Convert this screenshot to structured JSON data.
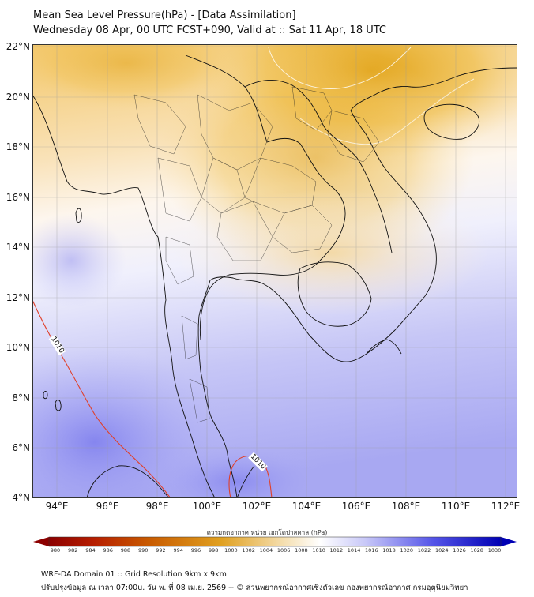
{
  "header": {
    "title_line1": "Mean Sea Level Pressure(hPa) - [Data Assimilation]",
    "title_line2": "Wednesday 08 Apr, 00 UTC FCST+090, Valid at :: Sat 11 Apr, 18 UTC"
  },
  "map": {
    "lat_labels": [
      "22°N",
      "20°N",
      "18°N",
      "16°N",
      "14°N",
      "12°N",
      "10°N",
      "8°N",
      "6°N",
      "4°N"
    ],
    "lon_labels": [
      "94°E",
      "96°E",
      "98°E",
      "100°E",
      "102°E",
      "104°E",
      "106°E",
      "108°E",
      "110°E",
      "112°E"
    ],
    "isobar_labels": [
      "1010",
      "1010"
    ],
    "colors": {
      "low": "#c89000",
      "mid": "#ffffff",
      "high": "#5a5ae6",
      "isobar": "#e0402a",
      "coast": "#111111"
    }
  },
  "colorbar": {
    "title": "ความกดอากาศ หน่วย เฮกโตปาสคาล (hPa)",
    "ticks": [
      "980",
      "982",
      "984",
      "986",
      "988",
      "990",
      "992",
      "994",
      "996",
      "998",
      "1000",
      "1002",
      "1004",
      "1006",
      "1008",
      "1010",
      "1012",
      "1014",
      "1016",
      "1018",
      "1020",
      "1022",
      "1024",
      "1026",
      "1028",
      "1030"
    ]
  },
  "footer": {
    "line1": "WRF-DA Domain 01 :: Grid Resolution 9km x 9km",
    "line2": "ปรับปรุงข้อมูล ณ เวลา 07:00u. วัน พ. ที่ 08 เม.ย. 2569 -- © ส่วนพยากรณ์อากาศเชิงตัวเลข กองพยากรณ์อากาศ กรมอุตุนิยมวิทยา"
  }
}
